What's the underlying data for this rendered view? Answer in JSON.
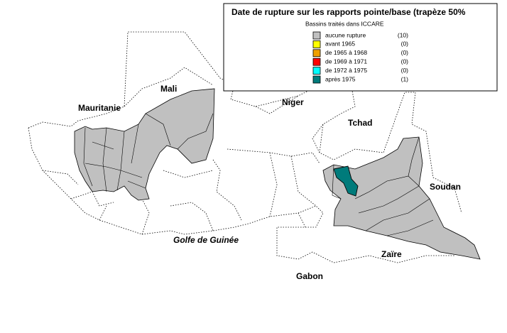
{
  "legend": {
    "title": "Date de rupture sur les rapports pointe/base (trapèze 50%",
    "subtitle": "Bassins traités dans ICCARE",
    "items": [
      {
        "label": "aucune rupture",
        "count": "(10)",
        "color": "#c0c0c0"
      },
      {
        "label": "avant 1965",
        "count": "(0)",
        "color": "#ffff00"
      },
      {
        "label": "de 1965 à 1968",
        "count": "(0)",
        "color": "#f0a000"
      },
      {
        "label": "de 1969 à 1971",
        "count": "(0)",
        "color": "#ff0000"
      },
      {
        "label": "de 1972 à 1975",
        "count": "(0)",
        "color": "#00ffff"
      },
      {
        "label": "après 1975",
        "count": "(1)",
        "color": "#007b7b"
      }
    ]
  },
  "labels": [
    "Mauritanie",
    "Mali",
    "Niger",
    "Tchad",
    "Soudan",
    "Zaïre",
    "Gabon",
    "Golfe de Guinée"
  ]
}
